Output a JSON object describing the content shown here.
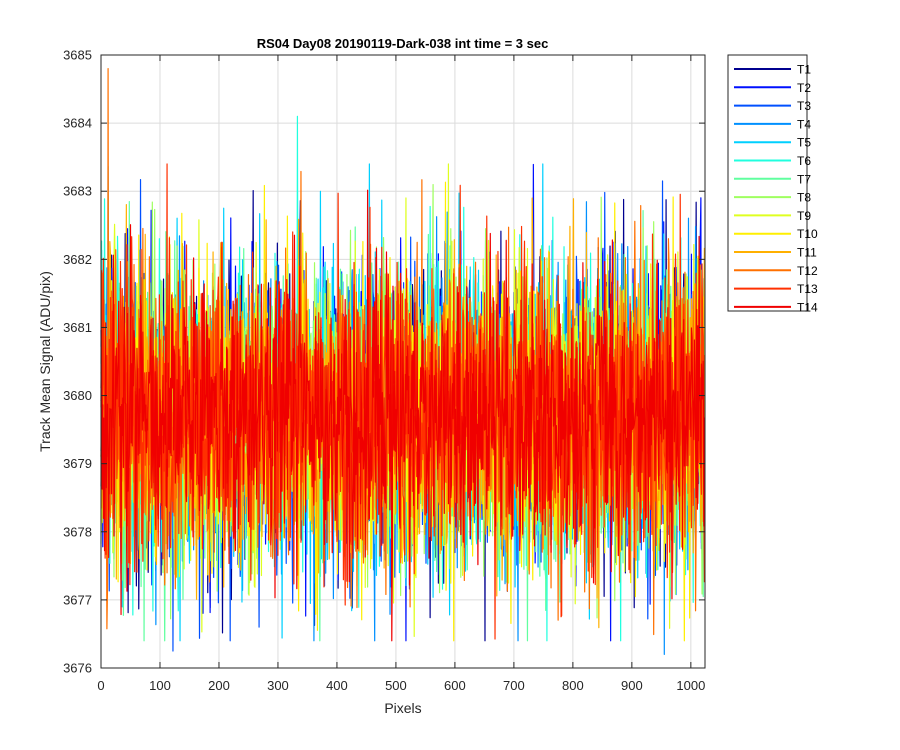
{
  "chart_data": {
    "type": "line",
    "title": "RS04 Day08 20190119-Dark-038 int time = 3 sec",
    "xlabel": "Pixels",
    "ylabel": "Track Mean Signal (ADU/pix)",
    "xlim": [
      0,
      1024
    ],
    "ylim": [
      3676,
      3685
    ],
    "xticks": [
      0,
      100,
      200,
      300,
      400,
      500,
      600,
      700,
      800,
      900,
      1000
    ],
    "yticks": [
      3676,
      3677,
      3678,
      3679,
      3680,
      3681,
      3682,
      3683,
      3684,
      3685
    ],
    "xtick_labels": [
      "0",
      "100",
      "200",
      "300",
      "400",
      "500",
      "600",
      "700",
      "800",
      "900",
      "1000"
    ],
    "ytick_labels": [
      "3676",
      "3677",
      "3678",
      "3679",
      "3680",
      "3681",
      "3682",
      "3683",
      "3684",
      "3685"
    ],
    "grid": true,
    "legend_position": "outside-top-right",
    "noise": {
      "points_per_series": 1024,
      "mean": 3679.7,
      "std": 1.05,
      "seed": 38
    },
    "series": [
      {
        "name": "T1",
        "color": "#00008F"
      },
      {
        "name": "T2",
        "color": "#0010FF"
      },
      {
        "name": "T3",
        "color": "#0050FF"
      },
      {
        "name": "T4",
        "color": "#0090FF"
      },
      {
        "name": "T5",
        "color": "#00D0FF"
      },
      {
        "name": "T6",
        "color": "#20FFDF"
      },
      {
        "name": "T7",
        "color": "#60FF9F"
      },
      {
        "name": "T8",
        "color": "#9FFF60"
      },
      {
        "name": "T9",
        "color": "#DFFF20"
      },
      {
        "name": "T10",
        "color": "#FFEF00"
      },
      {
        "name": "T11",
        "color": "#FFB000"
      },
      {
        "name": "T12",
        "color": "#FF7000"
      },
      {
        "name": "T13",
        "color": "#FF3000"
      },
      {
        "name": "T14",
        "color": "#F00000"
      }
    ],
    "notable_points": [
      {
        "series": "T12",
        "x": 12,
        "y": 3684.8
      },
      {
        "series": "T6",
        "x": 333,
        "y": 3684.1
      },
      {
        "series": "T3",
        "x": 122,
        "y": 3676.25
      },
      {
        "series": "T4",
        "x": 955,
        "y": 3676.2
      }
    ]
  }
}
